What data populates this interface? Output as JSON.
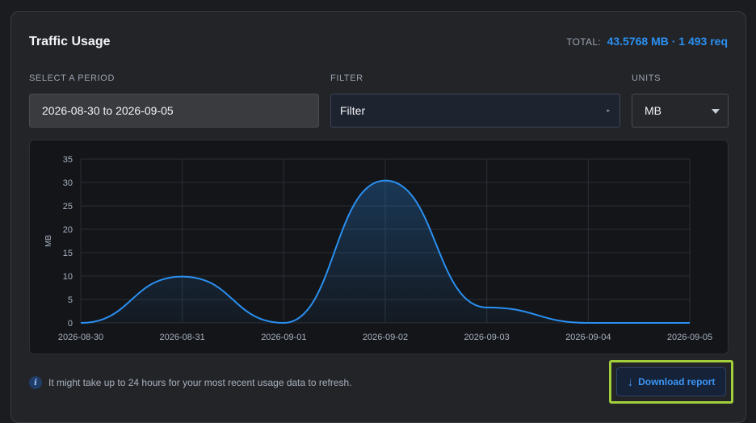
{
  "card": {
    "title": "Traffic Usage",
    "total_label": "TOTAL:",
    "total_value": "43.5768 MB · 1 493 req"
  },
  "period": {
    "label": "SELECT A PERIOD",
    "value": "2026-08-30 to 2026-09-05"
  },
  "filter": {
    "label": "FILTER",
    "value": "Filter"
  },
  "units": {
    "label": "UNITS",
    "value": "MB"
  },
  "chart_data": {
    "type": "area",
    "x": [
      "2026-08-30",
      "2026-08-31",
      "2026-09-01",
      "2026-09-02",
      "2026-09-03",
      "2026-09-04",
      "2026-09-05"
    ],
    "values": [
      0,
      9.9,
      0,
      30.4,
      3.3,
      0,
      0
    ],
    "ylabel": "MB",
    "ylim": [
      0,
      35
    ],
    "yticks": [
      0,
      5,
      10,
      15,
      20,
      25,
      30,
      35
    ],
    "grid": true,
    "color": "#2a8ff0"
  },
  "footer": {
    "info_icon": "info-icon",
    "note": "It might take up to 24 hours for your most recent usage data to refresh.",
    "download_label": "Download report",
    "download_icon": "arrow-down-icon",
    "highlight_color": "#a3cf3b"
  }
}
